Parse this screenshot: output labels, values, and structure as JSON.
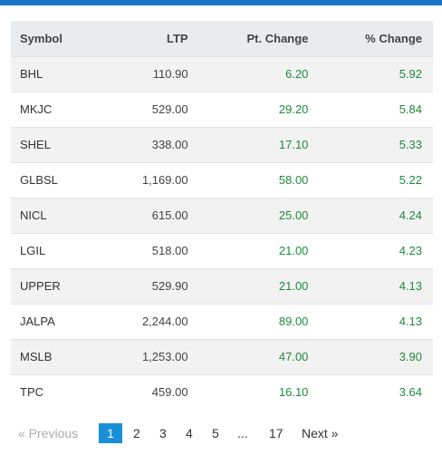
{
  "table": {
    "headers": {
      "symbol": "Symbol",
      "ltp": "LTP",
      "pt_change": "Pt. Change",
      "pct_change": "% Change"
    },
    "rows": [
      {
        "symbol": "BHL",
        "ltp": "110.90",
        "pt_change": "6.20",
        "pct_change": "5.92"
      },
      {
        "symbol": "MKJC",
        "ltp": "529.00",
        "pt_change": "29.20",
        "pct_change": "5.84"
      },
      {
        "symbol": "SHEL",
        "ltp": "338.00",
        "pt_change": "17.10",
        "pct_change": "5.33"
      },
      {
        "symbol": "GLBSL",
        "ltp": "1,169.00",
        "pt_change": "58.00",
        "pct_change": "5.22"
      },
      {
        "symbol": "NICL",
        "ltp": "615.00",
        "pt_change": "25.00",
        "pct_change": "4.24"
      },
      {
        "symbol": "LGIL",
        "ltp": "518.00",
        "pt_change": "21.00",
        "pct_change": "4.23"
      },
      {
        "symbol": "UPPER",
        "ltp": "529.90",
        "pt_change": "21.00",
        "pct_change": "4.13"
      },
      {
        "symbol": "JALPA",
        "ltp": "2,244.00",
        "pt_change": "89.00",
        "pct_change": "4.13"
      },
      {
        "symbol": "MSLB",
        "ltp": "1,253.00",
        "pt_change": "47.00",
        "pct_change": "3.90"
      },
      {
        "symbol": "TPC",
        "ltp": "459.00",
        "pt_change": "16.10",
        "pct_change": "3.64"
      }
    ]
  },
  "pagination": {
    "previous": "« Previous",
    "pages": [
      "1",
      "2",
      "3",
      "4",
      "5"
    ],
    "ellipsis": "...",
    "last": "17",
    "next": "Next »",
    "current": "1"
  },
  "colors": {
    "accent": "#1a73c8",
    "positive": "#1f8a3c",
    "active_page": "#1a8fd8"
  }
}
